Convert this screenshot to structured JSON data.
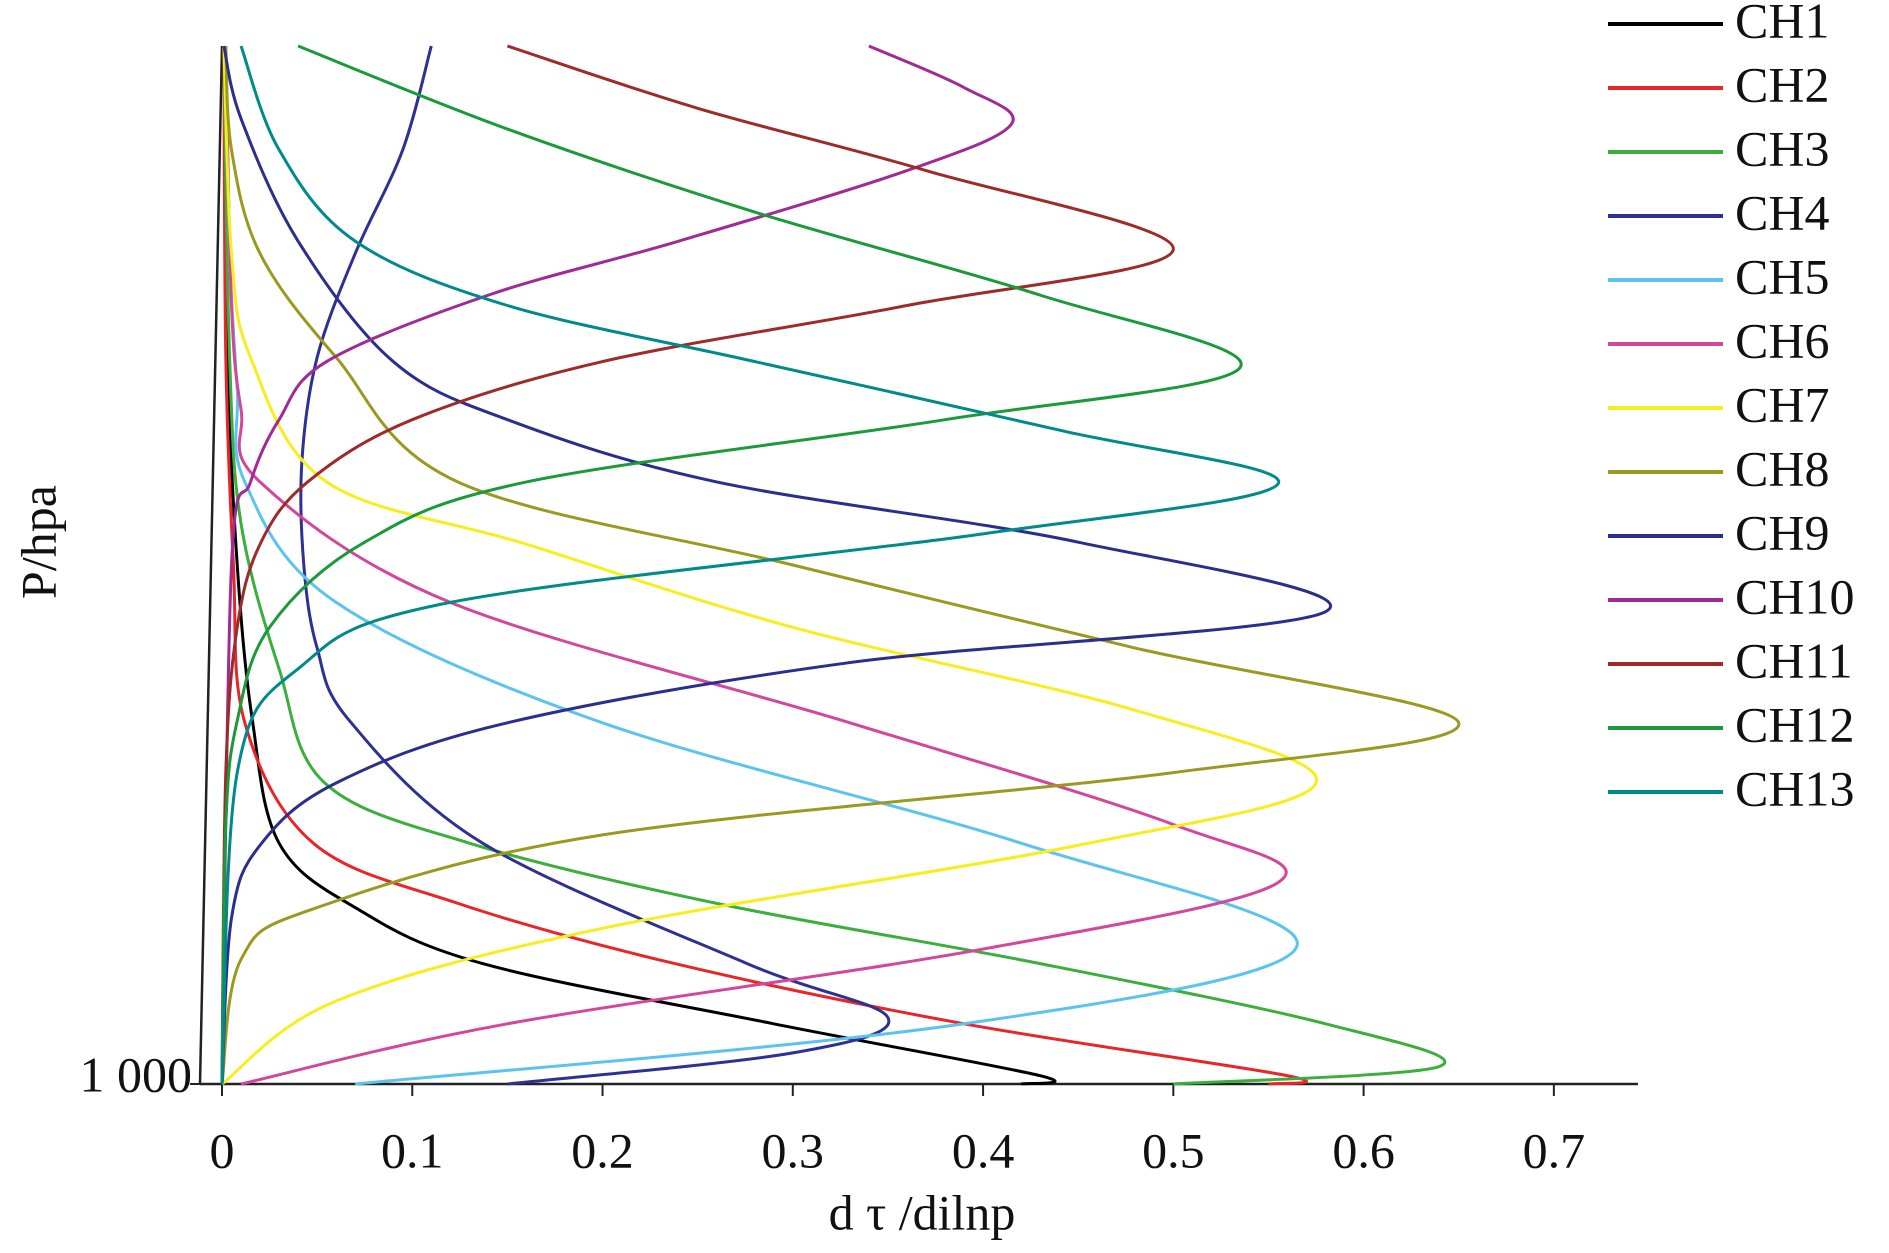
{
  "chart_data": {
    "type": "line",
    "orientation": "vertical-profile",
    "xlabel": "d τ /dilnp",
    "ylabel": "P/hpa",
    "xlim": [
      0,
      0.75
    ],
    "xticks": [
      0,
      0.1,
      0.2,
      0.3,
      0.4,
      0.5,
      0.6,
      0.7
    ],
    "ylim": [
      0,
      1000
    ],
    "yticks": [
      {
        "value": 1000,
        "label": "1 000"
      }
    ],
    "legend": "upper right",
    "series": [
      {
        "name": "CH1",
        "color": "#000000",
        "pressure": [
          0,
          300,
          500,
          650,
          768,
          830,
          884,
          942,
          992,
          1000
        ],
        "values": [
          0.002,
          0.003,
          0.008,
          0.016,
          0.03,
          0.07,
          0.137,
          0.29,
          0.43,
          0.42
        ]
      },
      {
        "name": "CH2",
        "color": "#e8262a",
        "pressure": [
          0,
          300,
          500,
          652,
          768,
          826,
          884,
          942,
          992,
          1000
        ],
        "values": [
          0.001,
          0.002,
          0.006,
          0.012,
          0.048,
          0.124,
          0.238,
          0.39,
          0.56,
          0.55
        ]
      },
      {
        "name": "CH3",
        "color": "#3cae3c",
        "pressure": [
          0,
          300,
          460,
          600,
          710,
          768,
          826,
          884,
          942,
          983,
          1000
        ],
        "values": [
          0.001,
          0.004,
          0.01,
          0.03,
          0.054,
          0.13,
          0.26,
          0.43,
          0.58,
          0.64,
          0.5
        ]
      },
      {
        "name": "CH4",
        "color": "#2e3192",
        "pressure": [
          0,
          100,
          200,
          300,
          400,
          500,
          580,
          650,
          768,
          884,
          936,
          970,
          1000
        ],
        "values": [
          0.11,
          0.095,
          0.07,
          0.05,
          0.042,
          0.043,
          0.05,
          0.067,
          0.137,
          0.276,
          0.35,
          0.3,
          0.15
        ]
      },
      {
        "name": "CH5",
        "color": "#5bc4ee",
        "pressure": [
          0,
          200,
          330,
          420,
          536,
          652,
          768,
          867,
          942,
          1000
        ],
        "values": [
          0.002,
          0.004,
          0.008,
          0.012,
          0.06,
          0.2,
          0.42,
          0.565,
          0.39,
          0.07
        ]
      },
      {
        "name": "CH6",
        "color": "#d2479a",
        "pressure": [
          0,
          250,
          350,
          420,
          536,
          652,
          750,
          806,
          870,
          942,
          1000
        ],
        "values": [
          0.002,
          0.005,
          0.01,
          0.02,
          0.12,
          0.33,
          0.5,
          0.555,
          0.4,
          0.15,
          0.01
        ]
      },
      {
        "name": "CH7",
        "color": "#f7ee1e",
        "pressure": [
          0,
          200,
          300,
          420,
          480,
          560,
          640,
          710,
          770,
          850,
          920,
          1000
        ],
        "values": [
          0.001,
          0.005,
          0.015,
          0.055,
          0.16,
          0.3,
          0.48,
          0.575,
          0.45,
          0.2,
          0.06,
          0
        ]
      },
      {
        "name": "CH8",
        "color": "#9a9a20",
        "pressure": [
          0,
          100,
          200,
          300,
          420,
          500,
          580,
          652,
          700,
          760,
          830,
          880,
          1000
        ],
        "values": [
          0.002,
          0.005,
          0.02,
          0.06,
          0.124,
          0.3,
          0.48,
          0.65,
          0.5,
          0.2,
          0.05,
          0.01,
          0
        ]
      },
      {
        "name": "CH9",
        "color": "#2b2e8c",
        "pressure": [
          0,
          70,
          188,
          304,
          360,
          420,
          478,
          545,
          594,
          652,
          710,
          770,
          840,
          1000
        ],
        "values": [
          0.001,
          0.01,
          0.04,
          0.09,
          0.15,
          0.26,
          0.45,
          0.58,
          0.33,
          0.15,
          0.06,
          0.02,
          0.005,
          0
        ]
      },
      {
        "name": "CH10",
        "color": "#a02a96",
        "pressure": [
          0,
          40,
          75,
          120,
          188,
          240,
          304,
          360,
          420,
          500,
          1000
        ],
        "values": [
          0.34,
          0.39,
          0.415,
          0.36,
          0.24,
          0.14,
          0.055,
          0.03,
          0.015,
          0.005,
          0
        ]
      },
      {
        "name": "CH11",
        "color": "#9e2a2a",
        "pressure": [
          0,
          60,
          120,
          196,
          250,
          304,
          360,
          420,
          480,
          560,
          700,
          1000
        ],
        "values": [
          0.15,
          0.25,
          0.37,
          0.5,
          0.36,
          0.2,
          0.1,
          0.045,
          0.02,
          0.008,
          0.002,
          0
        ]
      },
      {
        "name": "CH12",
        "color": "#1a9a3a",
        "pressure": [
          0,
          80,
          160,
          240,
          310,
          360,
          420,
          478,
          560,
          650,
          750,
          1000
        ],
        "values": [
          0.04,
          0.15,
          0.28,
          0.43,
          0.535,
          0.38,
          0.16,
          0.075,
          0.025,
          0.008,
          0.002,
          0
        ]
      },
      {
        "name": "CH13",
        "color": "#008a8a",
        "pressure": [
          0,
          100,
          188,
          250,
          304,
          370,
          422,
          470,
          536,
          600,
          700,
          1000
        ],
        "values": [
          0.01,
          0.03,
          0.07,
          0.15,
          0.28,
          0.44,
          0.555,
          0.4,
          0.12,
          0.04,
          0.008,
          0
        ]
      }
    ]
  }
}
